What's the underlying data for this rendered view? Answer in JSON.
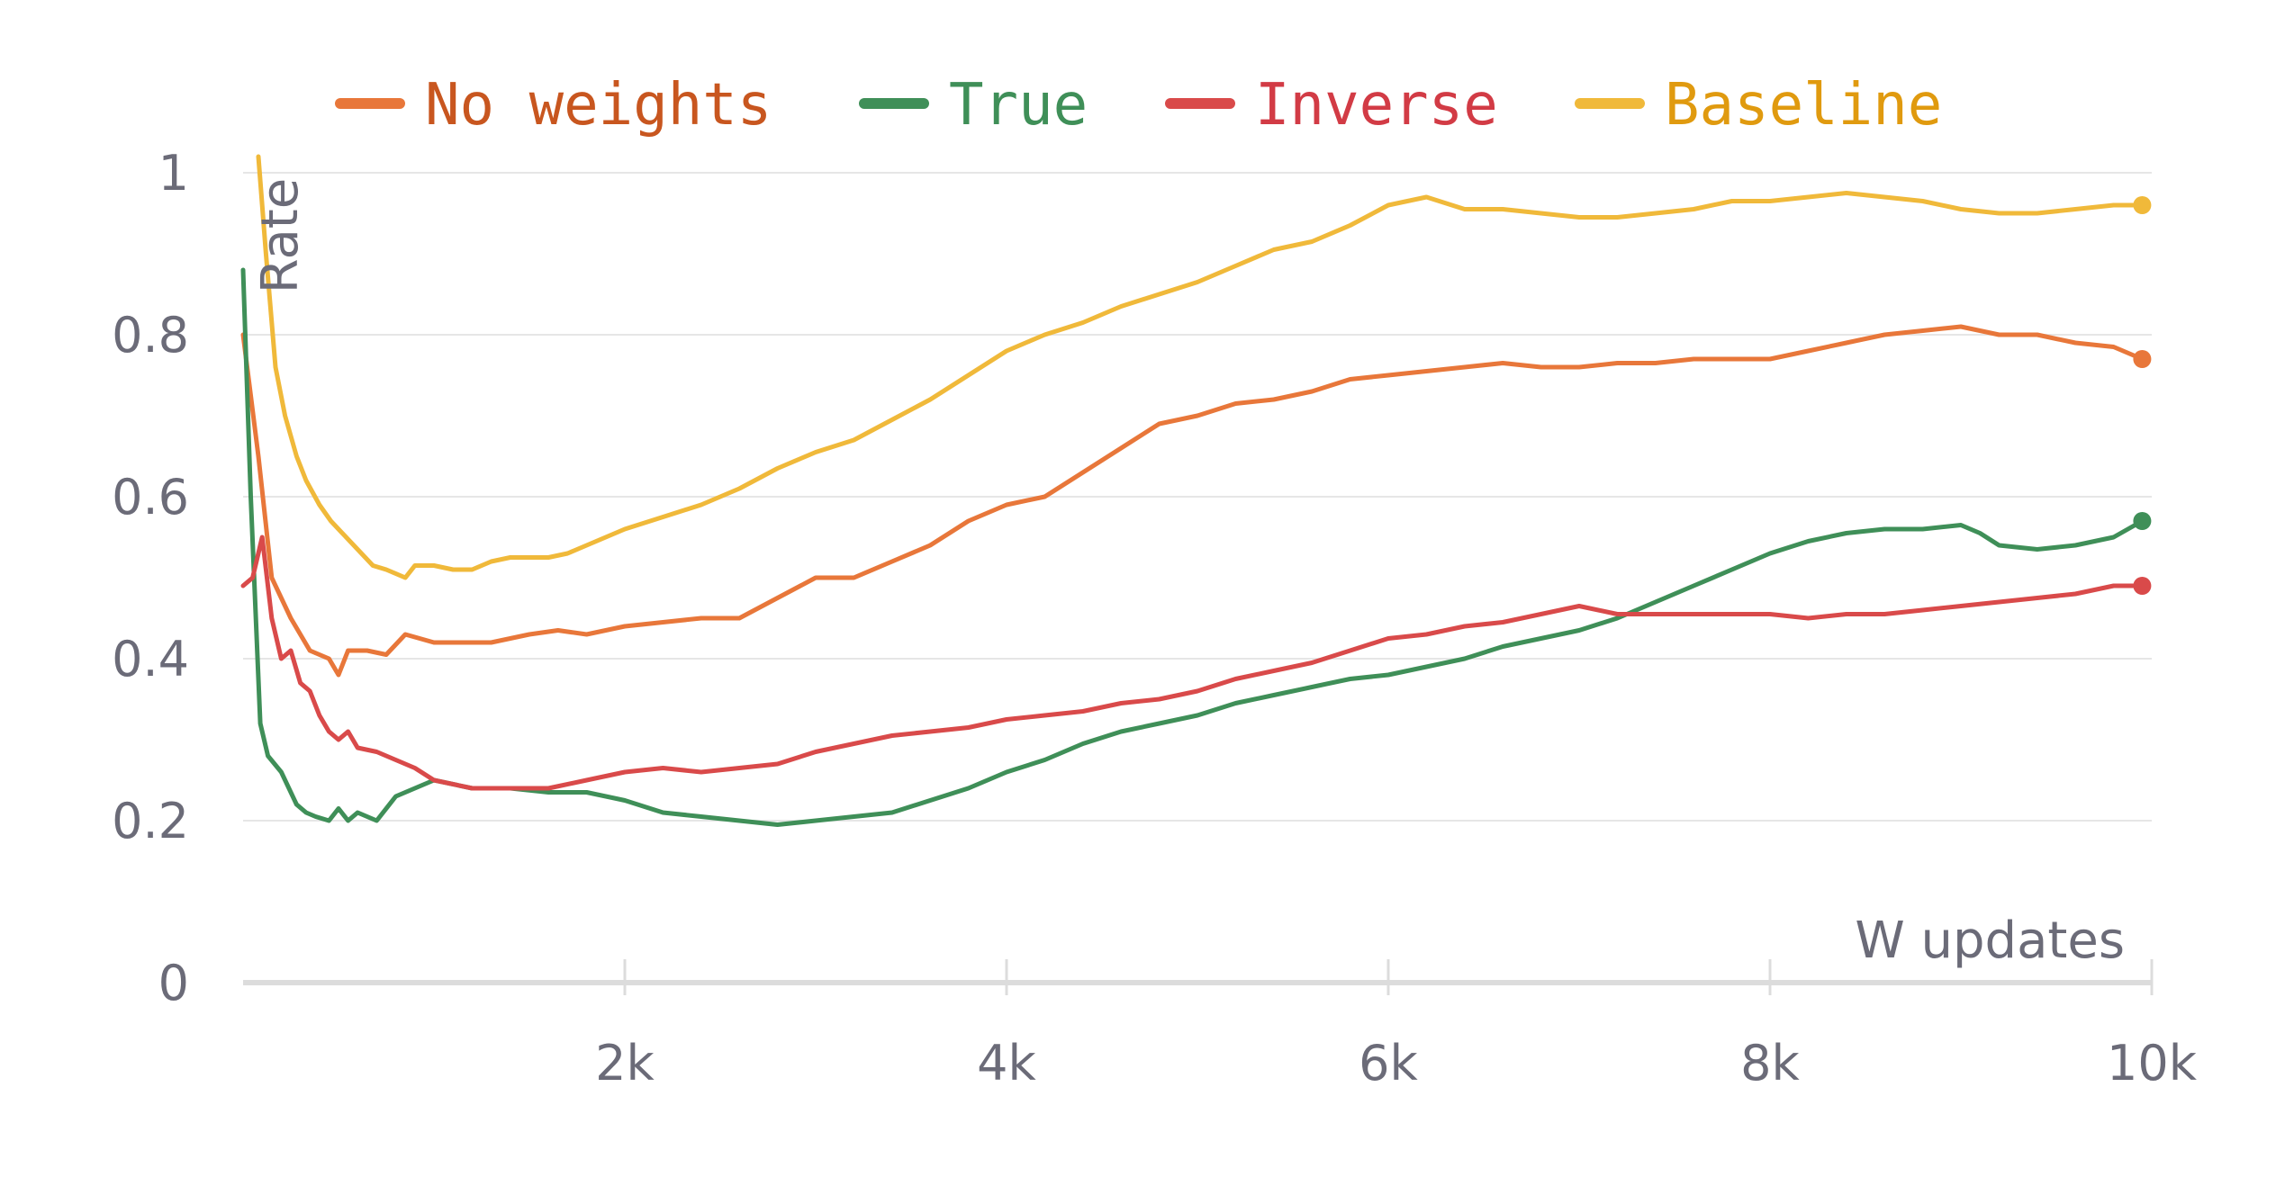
{
  "chart_data": {
    "type": "line",
    "xlabel": "W updates",
    "ylabel": "Rate",
    "xlim": [
      0,
      10000
    ],
    "ylim": [
      0,
      1
    ],
    "x_ticks": [
      {
        "value": 2000,
        "label": "2k"
      },
      {
        "value": 4000,
        "label": "4k"
      },
      {
        "value": 6000,
        "label": "6k"
      },
      {
        "value": 8000,
        "label": "8k"
      },
      {
        "value": 10000,
        "label": "10k"
      }
    ],
    "y_ticks": [
      {
        "value": 0,
        "label": "0"
      },
      {
        "value": 0.2,
        "label": "0.2"
      },
      {
        "value": 0.4,
        "label": "0.4"
      },
      {
        "value": 0.6,
        "label": "0.6"
      },
      {
        "value": 0.8,
        "label": "0.8"
      },
      {
        "value": 1,
        "label": "1"
      }
    ],
    "grid": true,
    "legend_position": "top",
    "series": [
      {
        "name": "No weights",
        "color": "#e8773a",
        "text_color": "#c8561f",
        "x": [
          0,
          80,
          150,
          250,
          350,
          450,
          500,
          550,
          650,
          750,
          850,
          1000,
          1150,
          1300,
          1500,
          1650,
          1800,
          2000,
          2200,
          2400,
          2600,
          2800,
          3000,
          3200,
          3400,
          3600,
          3800,
          4000,
          4200,
          4400,
          4600,
          4800,
          5000,
          5200,
          5400,
          5600,
          5800,
          6000,
          6200,
          6400,
          6600,
          6800,
          7000,
          7200,
          7400,
          7600,
          7800,
          8000,
          8200,
          8400,
          8600,
          8800,
          9000,
          9200,
          9400,
          9600,
          9800,
          9950
        ],
        "y": [
          0.8,
          0.65,
          0.5,
          0.45,
          0.41,
          0.4,
          0.38,
          0.41,
          0.41,
          0.405,
          0.43,
          0.42,
          0.42,
          0.42,
          0.43,
          0.435,
          0.43,
          0.44,
          0.445,
          0.45,
          0.45,
          0.475,
          0.5,
          0.5,
          0.52,
          0.54,
          0.57,
          0.59,
          0.6,
          0.63,
          0.66,
          0.69,
          0.7,
          0.715,
          0.72,
          0.73,
          0.745,
          0.75,
          0.755,
          0.76,
          0.765,
          0.76,
          0.76,
          0.765,
          0.765,
          0.77,
          0.77,
          0.77,
          0.78,
          0.79,
          0.8,
          0.805,
          0.81,
          0.8,
          0.8,
          0.79,
          0.785,
          0.77
        ]
      },
      {
        "name": "True",
        "color": "#3f8f58",
        "text_color": "#3f8f58",
        "x": [
          0,
          40,
          90,
          130,
          200,
          280,
          330,
          380,
          450,
          500,
          550,
          600,
          650,
          700,
          800,
          900,
          1000,
          1200,
          1400,
          1600,
          1800,
          2000,
          2200,
          2400,
          2600,
          2800,
          3000,
          3200,
          3400,
          3600,
          3800,
          4000,
          4200,
          4400,
          4600,
          4800,
          5000,
          5200,
          5400,
          5600,
          5800,
          6000,
          6200,
          6400,
          6600,
          6800,
          7000,
          7200,
          7400,
          7600,
          7800,
          8000,
          8200,
          8400,
          8600,
          8800,
          9000,
          9100,
          9200,
          9400,
          9600,
          9800,
          9950
        ],
        "y": [
          0.88,
          0.6,
          0.32,
          0.28,
          0.26,
          0.22,
          0.21,
          0.205,
          0.2,
          0.215,
          0.2,
          0.21,
          0.205,
          0.2,
          0.23,
          0.24,
          0.25,
          0.24,
          0.24,
          0.235,
          0.235,
          0.225,
          0.21,
          0.205,
          0.2,
          0.195,
          0.2,
          0.205,
          0.21,
          0.225,
          0.24,
          0.26,
          0.275,
          0.295,
          0.31,
          0.32,
          0.33,
          0.345,
          0.355,
          0.365,
          0.375,
          0.38,
          0.39,
          0.4,
          0.415,
          0.425,
          0.435,
          0.45,
          0.47,
          0.49,
          0.51,
          0.53,
          0.545,
          0.555,
          0.56,
          0.56,
          0.565,
          0.555,
          0.54,
          0.535,
          0.54,
          0.55,
          0.57
        ]
      },
      {
        "name": "Inverse",
        "color": "#d94a4a",
        "text_color": "#d23b45",
        "x": [
          0,
          50,
          100,
          150,
          200,
          250,
          300,
          350,
          400,
          450,
          500,
          550,
          600,
          700,
          800,
          900,
          1000,
          1200,
          1400,
          1600,
          1800,
          2000,
          2200,
          2400,
          2600,
          2800,
          3000,
          3200,
          3400,
          3600,
          3800,
          4000,
          4200,
          4400,
          4600,
          4800,
          5000,
          5200,
          5400,
          5600,
          5800,
          6000,
          6200,
          6400,
          6600,
          6800,
          7000,
          7200,
          7400,
          7600,
          7800,
          8000,
          8200,
          8400,
          8600,
          8800,
          9000,
          9200,
          9400,
          9600,
          9800,
          9950
        ],
        "y": [
          0.49,
          0.5,
          0.55,
          0.45,
          0.4,
          0.41,
          0.37,
          0.36,
          0.33,
          0.31,
          0.3,
          0.31,
          0.29,
          0.285,
          0.275,
          0.265,
          0.25,
          0.24,
          0.24,
          0.24,
          0.25,
          0.26,
          0.265,
          0.26,
          0.265,
          0.27,
          0.285,
          0.295,
          0.305,
          0.31,
          0.315,
          0.325,
          0.33,
          0.335,
          0.345,
          0.35,
          0.36,
          0.375,
          0.385,
          0.395,
          0.41,
          0.425,
          0.43,
          0.44,
          0.445,
          0.455,
          0.465,
          0.455,
          0.455,
          0.455,
          0.455,
          0.455,
          0.45,
          0.455,
          0.455,
          0.46,
          0.465,
          0.47,
          0.475,
          0.48,
          0.49,
          0.49
        ]
      },
      {
        "name": "Baseline",
        "color": "#f0b93a",
        "text_color": "#e09a0f",
        "x": [
          80,
          120,
          170,
          220,
          280,
          330,
          400,
          460,
          520,
          600,
          680,
          750,
          850,
          900,
          1000,
          1100,
          1200,
          1300,
          1400,
          1500,
          1600,
          1700,
          1800,
          2000,
          2200,
          2400,
          2600,
          2800,
          3000,
          3200,
          3400,
          3600,
          3800,
          4000,
          4200,
          4400,
          4600,
          4800,
          5000,
          5200,
          5400,
          5600,
          5800,
          6000,
          6200,
          6400,
          6600,
          6800,
          7000,
          7200,
          7400,
          7600,
          7800,
          8000,
          8200,
          8400,
          8600,
          8800,
          9000,
          9200,
          9400,
          9600,
          9800,
          9950
        ],
        "y": [
          1.02,
          0.9,
          0.76,
          0.7,
          0.65,
          0.62,
          0.59,
          0.57,
          0.555,
          0.535,
          0.515,
          0.51,
          0.5,
          0.515,
          0.515,
          0.51,
          0.51,
          0.52,
          0.525,
          0.525,
          0.525,
          0.53,
          0.54,
          0.56,
          0.575,
          0.59,
          0.61,
          0.635,
          0.655,
          0.67,
          0.695,
          0.72,
          0.75,
          0.78,
          0.8,
          0.815,
          0.835,
          0.85,
          0.865,
          0.885,
          0.905,
          0.915,
          0.935,
          0.96,
          0.97,
          0.955,
          0.955,
          0.95,
          0.945,
          0.945,
          0.95,
          0.955,
          0.965,
          0.965,
          0.97,
          0.975,
          0.97,
          0.965,
          0.955,
          0.95,
          0.95,
          0.955,
          0.96,
          0.96
        ]
      }
    ]
  }
}
